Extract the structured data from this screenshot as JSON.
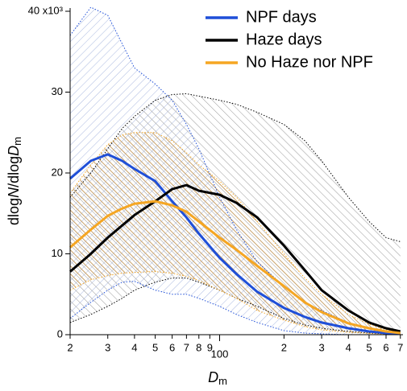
{
  "chart_data": {
    "type": "line",
    "x_label": [
      "D",
      "m"
    ],
    "y_label": [
      "dlog",
      "N",
      "/dlog",
      "D",
      "m"
    ],
    "x": [
      20,
      25,
      30,
      35,
      40,
      50,
      60,
      70,
      80,
      100,
      120,
      150,
      200,
      250,
      300,
      400,
      500,
      600,
      700
    ],
    "series": [
      {
        "name": "NPF days",
        "color": "#1f4fd8",
        "values": [
          19.3,
          21.5,
          22.3,
          21.5,
          20.5,
          19,
          16.5,
          14.5,
          12.5,
          9.5,
          7.5,
          5.3,
          3.3,
          2.2,
          1.5,
          0.8,
          0.4,
          0.2,
          0.1
        ],
        "upper": [
          37,
          40.5,
          39.5,
          36,
          33,
          31,
          29,
          26,
          23,
          17,
          13,
          9,
          6,
          4,
          3,
          1.5,
          0.8,
          0.4,
          0.2
        ],
        "lower": [
          2,
          4,
          5.5,
          6.5,
          6.6,
          5.5,
          5,
          5,
          4.5,
          3.5,
          2.5,
          1.5,
          0.5,
          0.2,
          0.1,
          0,
          0,
          0,
          0
        ]
      },
      {
        "name": "Haze days",
        "color": "#000000",
        "values": [
          7.8,
          10,
          12,
          13.5,
          14.8,
          16.5,
          18,
          18.5,
          17.8,
          17.3,
          16.3,
          14.5,
          11,
          8,
          5.5,
          3,
          1.5,
          0.8,
          0.4
        ],
        "upper": [
          17,
          20,
          23,
          25.5,
          27,
          29,
          29.7,
          29.8,
          29.5,
          29,
          28.5,
          27.5,
          26,
          24,
          21.5,
          17,
          14,
          12,
          11.5
        ],
        "lower": [
          1.5,
          2.5,
          3.5,
          4.5,
          5.5,
          6.5,
          7,
          7,
          6.5,
          5.5,
          4.5,
          3.5,
          2,
          1.2,
          0.8,
          0.4,
          0.2,
          0.1,
          0.05
        ]
      },
      {
        "name": "No Haze nor NPF",
        "color": "#f5a623",
        "values": [
          10.8,
          13,
          14.7,
          15.6,
          16.2,
          16.5,
          16,
          15.2,
          14,
          12,
          10.5,
          8.5,
          6,
          4,
          2.8,
          1.4,
          0.8,
          0.4,
          0.2
        ],
        "upper": [
          17.5,
          21,
          23.5,
          24.7,
          25,
          25,
          24,
          22.5,
          21,
          19,
          17,
          14,
          10,
          7,
          5,
          2.5,
          1.3,
          0.6,
          0.3
        ],
        "lower": [
          5.5,
          6.8,
          7.3,
          7.6,
          7.7,
          7.8,
          7.6,
          7.2,
          6.7,
          5.5,
          4.5,
          3,
          1.8,
          1,
          0.6,
          0.3,
          0.15,
          0.08,
          0.04
        ]
      }
    ],
    "xlim": [
      20,
      720
    ],
    "xscale": "log",
    "xticks": [
      {
        "value": 20,
        "label": "2"
      },
      {
        "value": 30,
        "label": "3"
      },
      {
        "value": 40,
        "label": "4"
      },
      {
        "value": 50,
        "label": "5"
      },
      {
        "value": 60,
        "label": "6"
      },
      {
        "value": 70,
        "label": "7"
      },
      {
        "value": 80,
        "label": "8"
      },
      {
        "value": 90,
        "label": "9"
      },
      100,
      {
        "value": 200,
        "label": "2"
      },
      {
        "value": 300,
        "label": "3"
      },
      {
        "value": 400,
        "label": "4"
      },
      {
        "value": 500,
        "label": "5"
      },
      {
        "value": 600,
        "label": "6"
      },
      {
        "value": 700,
        "label": "7"
      }
    ],
    "ylim": [
      0,
      40
    ],
    "yticks": [
      0,
      10,
      20,
      30,
      {
        "value": 40,
        "label": "40 x10³"
      }
    ],
    "legend": "top-right"
  }
}
